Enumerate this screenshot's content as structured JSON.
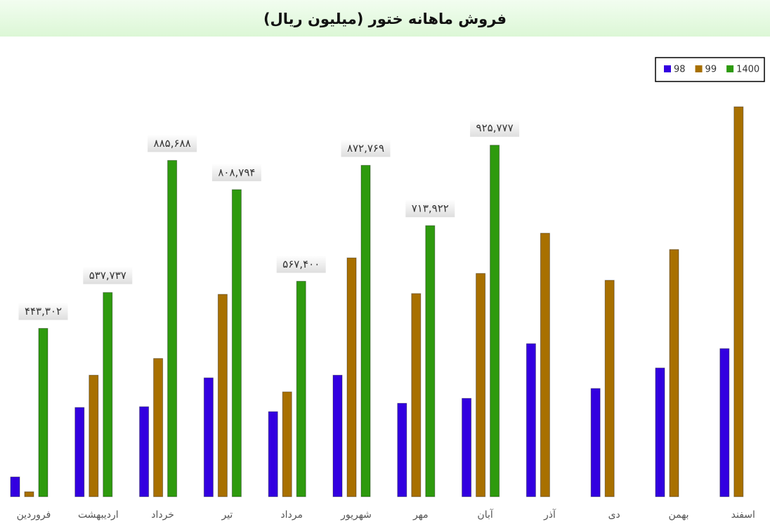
{
  "chart_data": {
    "type": "bar",
    "title": "فروش ماهانه ختور (میلیون ریال)",
    "categories": [
      "فروردین",
      "اردیبهشت",
      "خرداد",
      "تیر",
      "مرداد",
      "شهریور",
      "مهر",
      "آبان",
      "آذر",
      "دی",
      "بهمن",
      "اسفند"
    ],
    "series": [
      {
        "name": "98",
        "color": "#3300e0",
        "values": [
          52000,
          235000,
          237000,
          313000,
          224000,
          320000,
          246000,
          259000,
          403000,
          285000,
          339000,
          390000
        ]
      },
      {
        "name": "99",
        "color": "#a87000",
        "values": [
          13000,
          320000,
          364000,
          533000,
          276000,
          629000,
          535000,
          588000,
          694000,
          570000,
          651000,
          1027000
        ]
      },
      {
        "name": "1400",
        "color": "#2e9a0e",
        "values": [
          443302,
          537737,
          885688,
          808794,
          567400,
          872769,
          713922,
          925777,
          null,
          null,
          null,
          null
        ],
        "value_labels": [
          "۴۴۳,۳۰۲",
          "۵۳۷,۷۳۷",
          "۸۸۵,۶۸۸",
          "۸۰۸,۷۹۴",
          "۵۶۷,۴۰۰",
          "۸۷۲,۷۶۹",
          "۷۱۳,۹۲۲",
          "۹۲۵,۷۷۷",
          null,
          null,
          null,
          null
        ]
      }
    ],
    "legend": "top-right"
  }
}
